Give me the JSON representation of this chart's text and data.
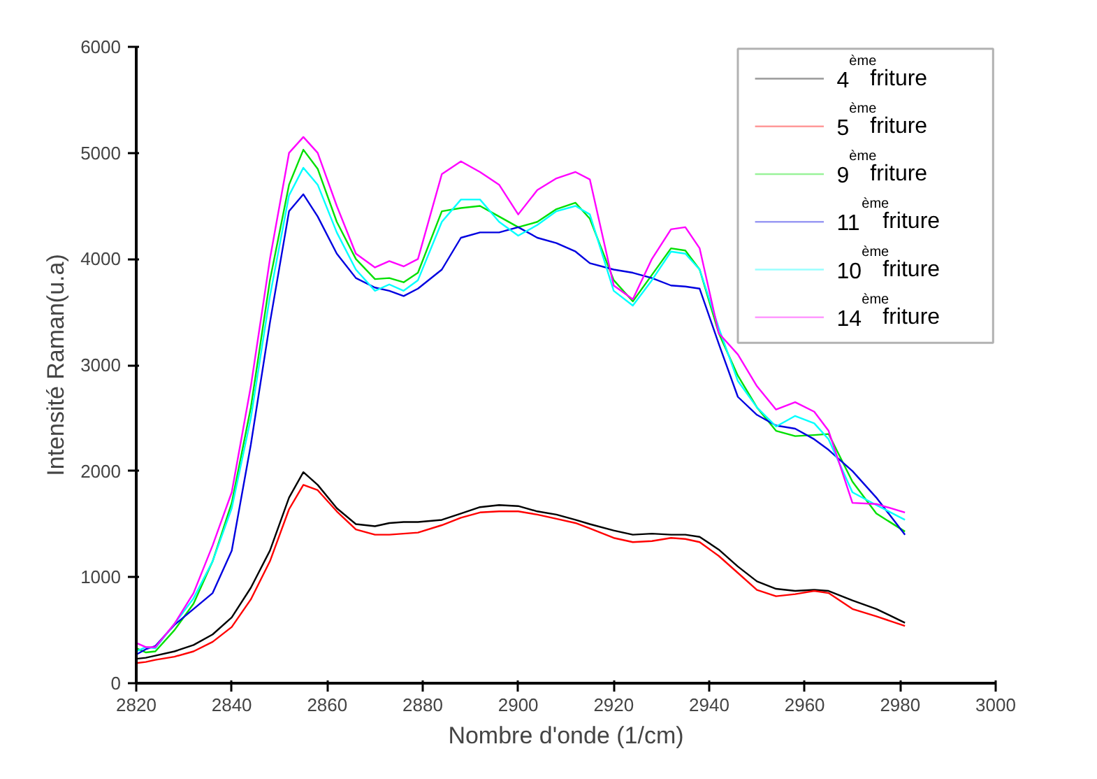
{
  "chart_data": {
    "type": "line",
    "xlabel": "Nombre d'onde (1/cm)",
    "ylabel": "Intensité Raman(u.a)",
    "x": [
      2820,
      2822,
      2824,
      2828,
      2832,
      2836,
      2840,
      2844,
      2848,
      2852,
      2855,
      2858,
      2862,
      2866,
      2870,
      2873,
      2876,
      2879,
      2884,
      2888,
      2892,
      2896,
      2900,
      2904,
      2908,
      2912,
      2915,
      2920,
      2924,
      2928,
      2932,
      2935,
      2938,
      2942,
      2946,
      2950,
      2954,
      2958,
      2962,
      2965,
      2970,
      2975,
      2981
    ],
    "xlim": [
      2820,
      3000
    ],
    "xticks": [
      2820,
      2840,
      2860,
      2880,
      2900,
      2920,
      2940,
      2960,
      2980,
      3000
    ],
    "ylim": [
      0,
      6000
    ],
    "yticks": [
      0,
      1000,
      2000,
      3000,
      4000,
      5000,
      6000
    ],
    "grid": false,
    "legend": "top right",
    "line_style": "solid",
    "marker": "none",
    "series": [
      {
        "name": "4$^{ème}$ friture",
        "color": "#000000",
        "values": [
          230,
          240,
          260,
          300,
          360,
          460,
          620,
          900,
          1250,
          1750,
          1990,
          1870,
          1650,
          1500,
          1480,
          1510,
          1520,
          1520,
          1540,
          1600,
          1660,
          1680,
          1670,
          1620,
          1590,
          1540,
          1500,
          1440,
          1400,
          1410,
          1400,
          1400,
          1380,
          1260,
          1100,
          960,
          890,
          870,
          880,
          870,
          780,
          700,
          570
        ]
      },
      {
        "name": "5$^{ème}$ friture",
        "color": "#ff0000",
        "values": [
          190,
          200,
          220,
          250,
          300,
          390,
          530,
          790,
          1150,
          1640,
          1870,
          1820,
          1620,
          1450,
          1400,
          1400,
          1410,
          1420,
          1490,
          1560,
          1610,
          1620,
          1620,
          1590,
          1550,
          1510,
          1460,
          1370,
          1330,
          1340,
          1370,
          1360,
          1330,
          1200,
          1040,
          880,
          820,
          840,
          870,
          850,
          700,
          630,
          540
        ]
      },
      {
        "name": "9$^{ème}$ friture",
        "color": "#00e000",
        "values": [
          330,
          290,
          300,
          500,
          750,
          1150,
          1700,
          2600,
          3800,
          4700,
          5030,
          4850,
          4350,
          4000,
          3810,
          3820,
          3780,
          3870,
          4450,
          4480,
          4500,
          4400,
          4300,
          4350,
          4470,
          4530,
          4380,
          3800,
          3600,
          3850,
          4100,
          4080,
          3900,
          3300,
          2900,
          2600,
          2380,
          2330,
          2340,
          2350,
          1900,
          1600,
          1430
        ]
      },
      {
        "name": "11$^{ème}$ friture",
        "color": "#0000e0",
        "values": [
          270,
          320,
          350,
          550,
          700,
          850,
          1250,
          2250,
          3400,
          4450,
          4610,
          4400,
          4050,
          3820,
          3730,
          3700,
          3650,
          3720,
          3900,
          4200,
          4250,
          4250,
          4300,
          4200,
          4150,
          4070,
          3960,
          3900,
          3870,
          3820,
          3750,
          3740,
          3720,
          3200,
          2700,
          2530,
          2430,
          2400,
          2300,
          2200,
          2000,
          1750,
          1400
        ]
      },
      {
        "name": "10$^{ème}$ friture",
        "color": "#00ffff",
        "values": [
          300,
          340,
          330,
          560,
          800,
          1150,
          1650,
          2500,
          3650,
          4600,
          4860,
          4700,
          4250,
          3900,
          3700,
          3760,
          3700,
          3800,
          4350,
          4560,
          4560,
          4350,
          4220,
          4320,
          4450,
          4500,
          4420,
          3700,
          3560,
          3800,
          4070,
          4050,
          3900,
          3350,
          2850,
          2600,
          2420,
          2520,
          2450,
          2300,
          1800,
          1680,
          1540
        ]
      },
      {
        "name": "14$^{ème}$ friture",
        "color": "#ff00ff",
        "values": [
          380,
          340,
          340,
          560,
          850,
          1300,
          1800,
          2800,
          4000,
          5000,
          5150,
          5000,
          4500,
          4050,
          3920,
          3980,
          3930,
          4000,
          4800,
          4920,
          4820,
          4700,
          4420,
          4650,
          4760,
          4820,
          4750,
          3750,
          3620,
          4000,
          4280,
          4300,
          4100,
          3300,
          3100,
          2800,
          2580,
          2650,
          2560,
          2380,
          1700,
          1690,
          1610
        ]
      }
    ]
  }
}
